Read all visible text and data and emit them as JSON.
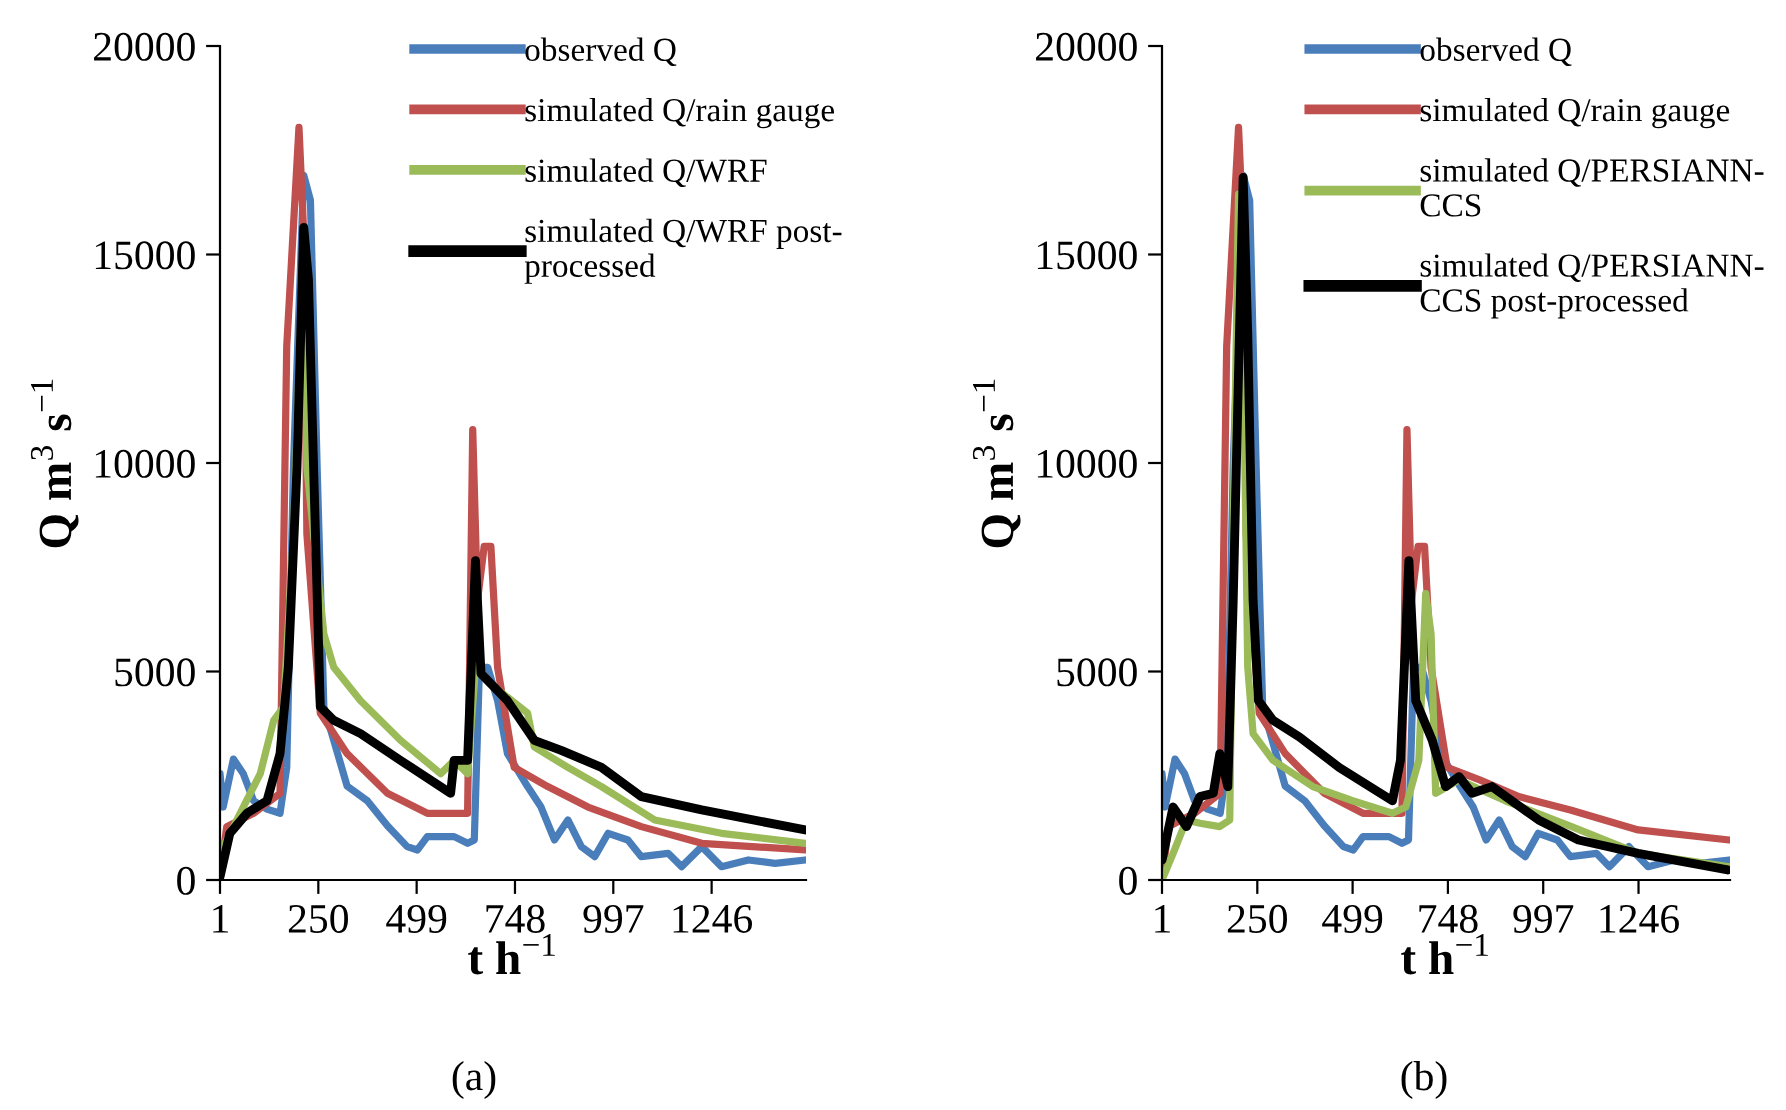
{
  "chart_data": [
    {
      "type": "line",
      "xlabel": "t h$^{−1}$",
      "ylabel": "Q m$^{3}$ s$^{−1}$",
      "xlim": [
        1,
        1485
      ],
      "xticks": [
        1,
        250,
        499,
        748,
        997,
        1246
      ],
      "ylim": [
        0,
        20000
      ],
      "yticks": [
        0,
        5000,
        10000,
        15000,
        20000
      ],
      "grid": false,
      "legend": "top right",
      "annotations": [
        "(a)"
      ],
      "series": [
        {
          "name": "observed Q",
          "color": "#4a7ebb",
          "x": [
            1,
            9,
            35,
            60,
            86,
            120,
            153,
            170,
            187,
            213,
            230,
            247,
            264,
            289,
            323,
            374,
            425,
            475,
            501,
            526,
            594,
            628,
            645,
            658,
            679,
            704,
            729,
            780,
            814,
            848,
            882,
            916,
            950,
            984,
            1034,
            1068,
            1136,
            1170,
            1221,
            1271,
            1339,
            1407,
            1483
          ],
          "values": [
            2550,
            1750,
            2900,
            2550,
            1900,
            1700,
            1600,
            2700,
            9900,
            16900,
            16300,
            9900,
            4150,
            3350,
            2250,
            1900,
            1300,
            800,
            720,
            1040,
            1040,
            880,
            960,
            5100,
            5100,
            4300,
            3030,
            2240,
            1750,
            960,
            1440,
            800,
            560,
            1120,
            960,
            560,
            640,
            320,
            800,
            320,
            480,
            400,
            480
          ]
        },
        {
          "name": "simulated Q/rain gauge",
          "color": "#c0504d",
          "x": [
            1,
            18,
            86,
            153,
            170,
            201,
            213,
            221,
            255,
            323,
            425,
            526,
            628,
            641,
            653,
            670,
            687,
            704,
            746,
            831,
            933,
            1068,
            1221,
            1483
          ],
          "values": [
            0,
            1280,
            1600,
            2080,
            12800,
            18050,
            15500,
            8300,
            4000,
            3030,
            2080,
            1600,
            1600,
            10800,
            6700,
            8000,
            8000,
            5100,
            2700,
            2240,
            1750,
            1280,
            880,
            720
          ]
        },
        {
          "name": "simulated Q/WRF",
          "color": "#9bbb59",
          "x": [
            1,
            52,
            103,
            137,
            162,
            187,
            213,
            221,
            238,
            264,
            289,
            357,
            458,
            560,
            594,
            628,
            648,
            696,
            780,
            797,
            882,
            967,
            1102,
            1271,
            1483
          ],
          "values": [
            640,
            1600,
            2550,
            3830,
            4150,
            8300,
            15500,
            9900,
            8300,
            5900,
            5100,
            4300,
            3350,
            2550,
            2870,
            2550,
            5100,
            4630,
            4000,
            3190,
            2700,
            2240,
            1440,
            1120,
            880
          ]
        },
        {
          "name": "simulated Q/WRF post-\nprocessed",
          "color": "#000000",
          "x": [
            1,
            26,
            69,
            120,
            153,
            174,
            196,
            213,
            225,
            238,
            255,
            289,
            357,
            458,
            585,
            594,
            628,
            648,
            662,
            729,
            797,
            865,
            967,
            1068,
            1221,
            1483
          ],
          "values": [
            80,
            1120,
            1600,
            1900,
            3030,
            5100,
            9900,
            15650,
            14400,
            9900,
            4150,
            3830,
            3510,
            2870,
            2080,
            2870,
            2870,
            7660,
            4950,
            4300,
            3350,
            3110,
            2700,
            2000,
            1680,
            1200
          ]
        }
      ]
    },
    {
      "type": "line",
      "xlabel": "t h$^{−1}$",
      "ylabel": "Q m$^{3}$ s$^{−1}$",
      "xlim": [
        1,
        1485
      ],
      "xticks": [
        1,
        250,
        499,
        748,
        997,
        1246
      ],
      "ylim": [
        0,
        20000
      ],
      "yticks": [
        0,
        5000,
        10000,
        15000,
        20000
      ],
      "grid": false,
      "legend": "top right",
      "annotations": [
        "(b)"
      ],
      "series": [
        {
          "name": "observed Q",
          "color": "#4a7ebb",
          "x": [
            1,
            9,
            35,
            60,
            86,
            120,
            153,
            170,
            187,
            213,
            230,
            247,
            264,
            289,
            323,
            374,
            425,
            475,
            501,
            526,
            594,
            628,
            645,
            658,
            679,
            704,
            729,
            780,
            814,
            848,
            882,
            916,
            950,
            984,
            1034,
            1068,
            1136,
            1170,
            1221,
            1271,
            1339,
            1407,
            1483
          ],
          "values": [
            2550,
            1750,
            2900,
            2550,
            1900,
            1700,
            1600,
            2700,
            9900,
            16900,
            16300,
            9900,
            4150,
            3350,
            2250,
            1900,
            1300,
            800,
            720,
            1040,
            1040,
            880,
            960,
            5100,
            5100,
            4300,
            3030,
            2240,
            1750,
            960,
            1440,
            800,
            560,
            1120,
            960,
            560,
            640,
            320,
            800,
            320,
            480,
            400,
            480
          ]
        },
        {
          "name": "simulated Q/rain gauge",
          "color": "#c0504d",
          "x": [
            1,
            18,
            86,
            153,
            170,
            201,
            213,
            221,
            255,
            323,
            425,
            526,
            628,
            641,
            653,
            670,
            687,
            704,
            746,
            831,
            933,
            1068,
            1245,
            1483
          ],
          "values": [
            0,
            1280,
            1600,
            2080,
            12800,
            18050,
            15500,
            8300,
            4000,
            3030,
            2080,
            1600,
            1600,
            10800,
            6700,
            8000,
            8000,
            5100,
            2700,
            2400,
            2000,
            1680,
            1200,
            960
          ]
        },
        {
          "name": "simulated Q/PERSIANN-\nCCS",
          "color": "#9bbb59",
          "x": [
            1,
            30,
            65,
            100,
            152,
            178,
            187,
            201,
            213,
            225,
            239,
            291,
            395,
            499,
            603,
            638,
            672,
            690,
            704,
            716,
            777,
            898,
            1071,
            1245,
            1479
          ],
          "values": [
            0,
            640,
            1440,
            1360,
            1280,
            1440,
            8300,
            16450,
            13100,
            5100,
            3510,
            2870,
            2240,
            1900,
            1600,
            1750,
            2870,
            6870,
            5900,
            2080,
            2400,
            1900,
            1280,
            640,
            320
          ]
        },
        {
          "name": "simulated Q/PERSIANN-\nCCS post-processed",
          "color": "#000000",
          "x": [
            1,
            30,
            65,
            100,
            135,
            152,
            173,
            187,
            213,
            225,
            239,
            253,
            291,
            360,
            464,
            603,
            624,
            646,
            664,
            707,
            742,
            777,
            811,
            863,
            985,
            1089,
            1245,
            1479
          ],
          "values": [
            480,
            1750,
            1280,
            2000,
            2080,
            3030,
            2240,
            6700,
            16850,
            13100,
            6700,
            4300,
            3830,
            3430,
            2700,
            1900,
            2870,
            7660,
            4300,
            3350,
            2240,
            2480,
            2080,
            2240,
            1440,
            960,
            640,
            240
          ]
        }
      ]
    }
  ]
}
